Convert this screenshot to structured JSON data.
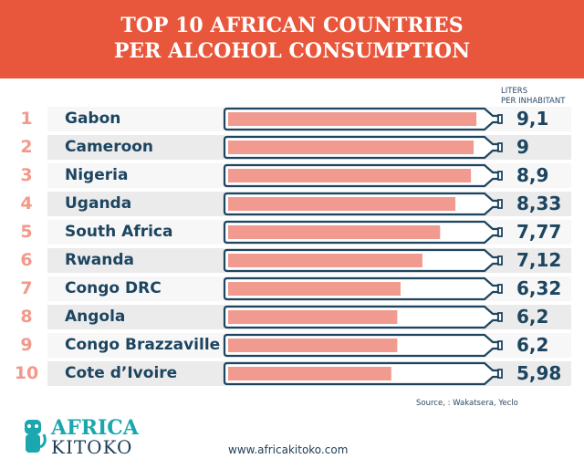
{
  "chart_data": {
    "type": "bar",
    "title_line1": "TOP 10 AFRICAN COUNTRIES",
    "title_line2": "PER ALCOHOL CONSUMPTION",
    "unit_line1": "LITERS",
    "unit_line2": "PER INHABITANT",
    "categories": [
      "Gabon",
      "Cameroon",
      "Nigeria",
      "Uganda",
      "South Africa",
      "Rwanda",
      "Congo DRC",
      "Angola",
      "Congo Brazzaville",
      "Cote d’Ivoire"
    ],
    "ranks": [
      "1",
      "2",
      "3",
      "4",
      "5",
      "6",
      "7",
      "8",
      "9",
      "10"
    ],
    "values": [
      9.1,
      9,
      8.9,
      8.33,
      7.77,
      7.12,
      6.32,
      6.2,
      6.2,
      5.98
    ],
    "value_labels": [
      "9,1",
      "9",
      "8,9",
      "8,33",
      "7,77",
      "7,12",
      "6,32",
      "6,2",
      "6,2",
      "5,98"
    ],
    "xlim": [
      0,
      10
    ],
    "colors": {
      "header": "#e8573c",
      "bar_fill": "#f19a90",
      "outline": "#1d4560",
      "rank": "#f3988a"
    }
  },
  "footer": {
    "source": "Source, : Wakatsera, Yeclo",
    "url": "www.africakitoko.com",
    "logo_line1": "AFRICA",
    "logo_line2": "KITOKO"
  }
}
